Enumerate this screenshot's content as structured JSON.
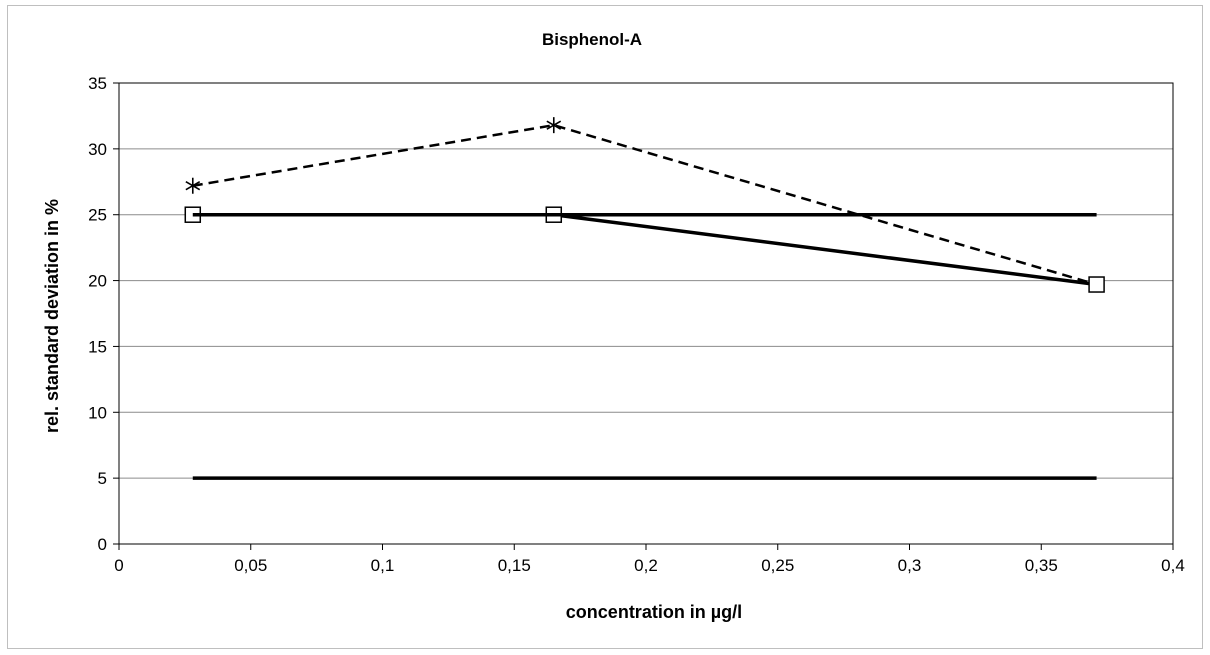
{
  "chart_data": {
    "type": "line",
    "title": "Bisphenol-A",
    "xlabel": "concentration in µg/l",
    "ylabel": "rel. standard deviation in %",
    "xlim": [
      0,
      0.4
    ],
    "ylim": [
      0,
      35
    ],
    "x_ticks": [
      "0",
      "0,05",
      "0,1",
      "0,15",
      "0,2",
      "0,25",
      "0,3",
      "0,35",
      "0,4"
    ],
    "y_ticks": [
      "0",
      "5",
      "10",
      "15",
      "20",
      "25",
      "30",
      "35"
    ],
    "grid": "horizontal",
    "legend": "none",
    "series": [
      {
        "style": "dashed",
        "marker": "asterisk",
        "x": [
          0.028,
          0.165,
          0.371
        ],
        "y": [
          27.2,
          31.8,
          19.7
        ]
      },
      {
        "style": "solid",
        "marker": "square",
        "x": [
          0.028,
          0.165,
          0.371
        ],
        "y": [
          25.0,
          25.0,
          19.7
        ]
      },
      {
        "style": "solid-thick",
        "marker": "none",
        "x": [
          0.028,
          0.371
        ],
        "y": [
          25,
          25
        ]
      },
      {
        "style": "solid-thick",
        "marker": "none",
        "x": [
          0.028,
          0.371
        ],
        "y": [
          5,
          5
        ]
      }
    ]
  }
}
